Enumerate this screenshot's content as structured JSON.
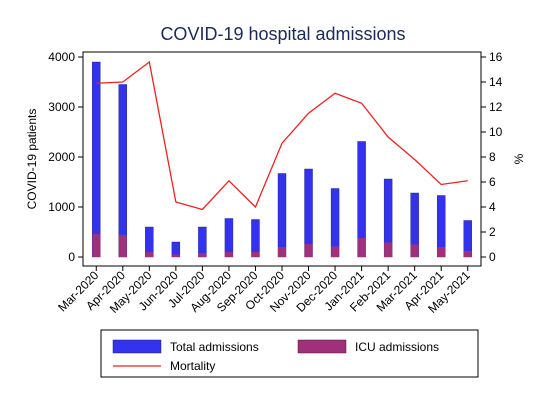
{
  "chart_data": {
    "type": "bar",
    "title": "COVID-19 hospital admissions",
    "xlabel": "",
    "ylabel": "COVID-19 patients",
    "y2label": "%",
    "categories": [
      "Mar-2020",
      "Apr-2020",
      "May-2020",
      "Jun-2020",
      "Jul-2020",
      "Aug-2020",
      "Sep-2020",
      "Oct-2020",
      "Nov-2020",
      "Dec-2020",
      "Jan-2021",
      "Feb-2021",
      "Mar-2021",
      "Apr-2021",
      "May-2021"
    ],
    "ylim": [
      0,
      4000
    ],
    "y2lim": [
      0,
      16
    ],
    "yticks": [
      0,
      1000,
      2000,
      3000,
      4000
    ],
    "y2ticks": [
      0,
      2,
      4,
      6,
      8,
      10,
      12,
      14,
      16
    ],
    "grid": false,
    "legend_position": "bottom",
    "series": [
      {
        "name": "Total admissions",
        "type": "bar",
        "axis": "left",
        "color": "#3333ee",
        "values": [
          3900,
          3450,
          600,
          300,
          600,
          770,
          750,
          1670,
          1760,
          1370,
          2310,
          1560,
          1280,
          1230,
          730
        ]
      },
      {
        "name": "ICU admissions",
        "type": "bar",
        "axis": "left",
        "color": "#a0307a",
        "values": [
          460,
          440,
          100,
          50,
          80,
          100,
          100,
          200,
          260,
          210,
          380,
          290,
          250,
          200,
          120
        ]
      },
      {
        "name": "Mortality",
        "type": "line",
        "axis": "right",
        "color": "#ee2222",
        "values": [
          13.9,
          14.0,
          15.6,
          4.4,
          3.8,
          6.1,
          4.0,
          9.1,
          11.5,
          13.1,
          12.3,
          9.6,
          7.8,
          5.8,
          6.1
        ]
      }
    ]
  }
}
